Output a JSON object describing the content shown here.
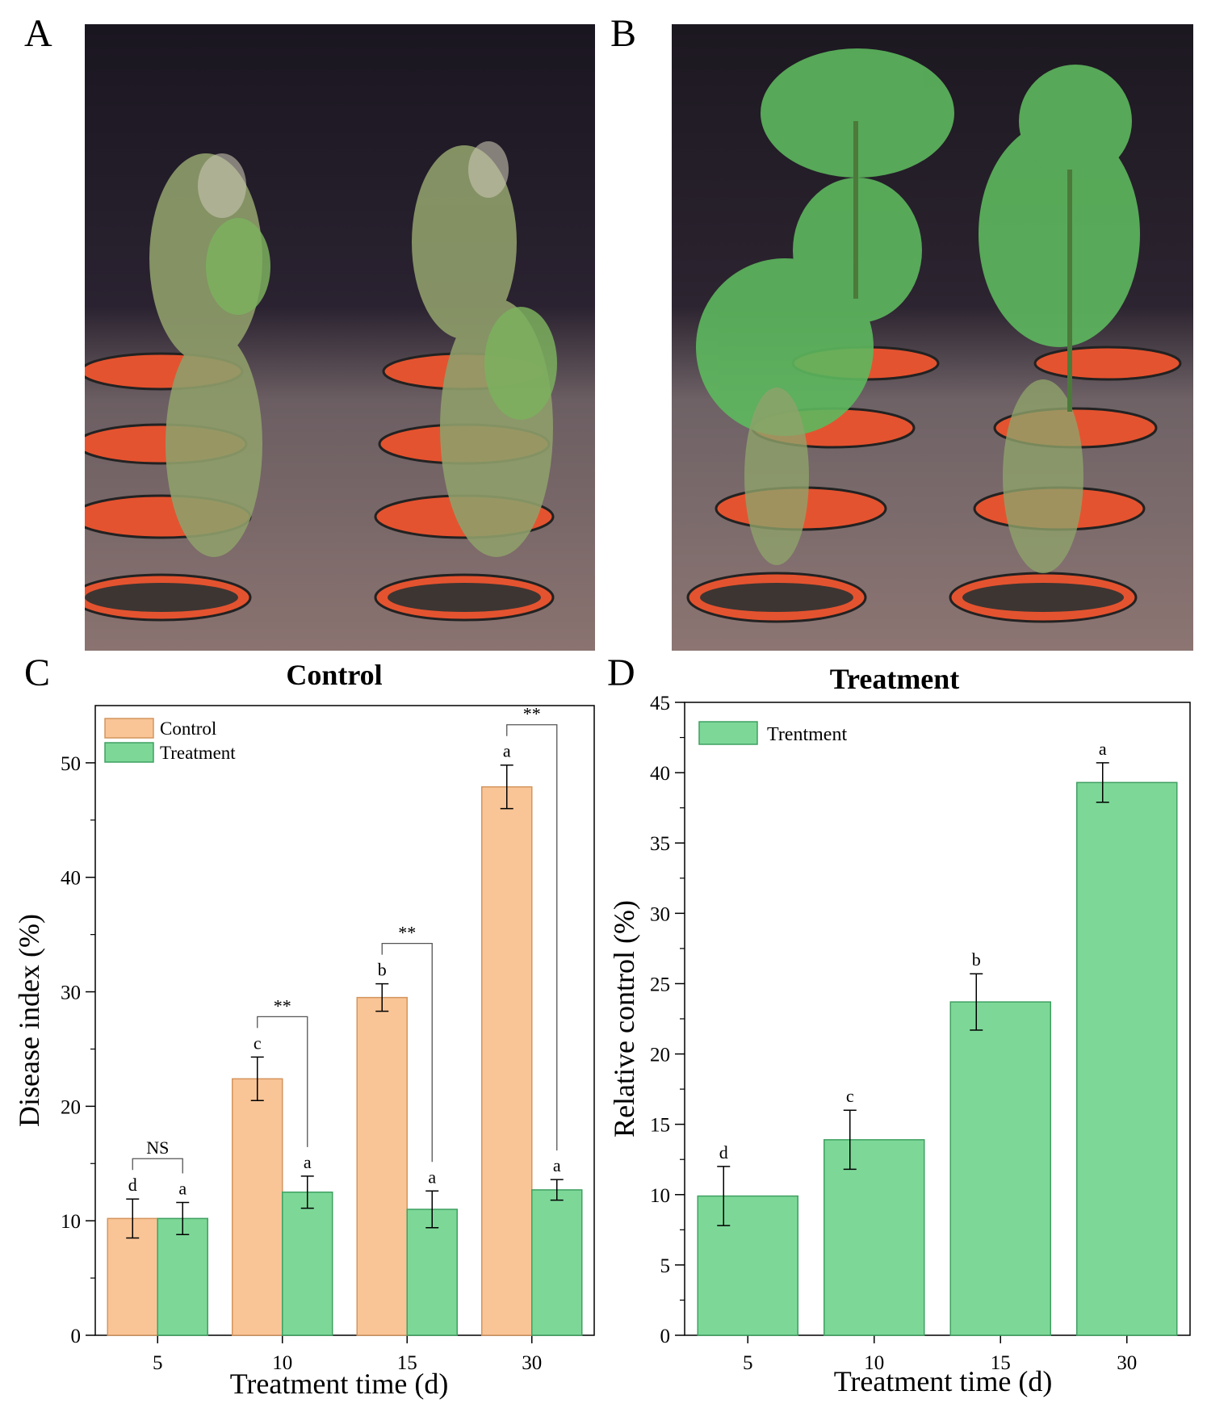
{
  "panels": {
    "a": {
      "letter": "A"
    },
    "b": {
      "letter": "B"
    },
    "c": {
      "letter": "C"
    },
    "d": {
      "letter": "D"
    }
  },
  "colors": {
    "control": "#f9c597",
    "control_edge": "#d4955e",
    "treatment": "#7dd898",
    "treatment_edge": "#3fa061"
  },
  "chart_data": [
    {
      "type": "bar",
      "title": "Control",
      "xlabel": "Treatment time (d)",
      "ylabel": "Disease index (%)",
      "categories": [
        "5",
        "10",
        "15",
        "30"
      ],
      "ylim": [
        0,
        55
      ],
      "yticks": [
        "0",
        "10",
        "20",
        "30",
        "40",
        "50"
      ],
      "legend_position": "top-left",
      "series": [
        {
          "name": "Control",
          "values": [
            10.2,
            22.4,
            29.5,
            47.9
          ],
          "errors": [
            1.7,
            1.9,
            1.2,
            1.9
          ],
          "letters": [
            "d",
            "c",
            "b",
            "a"
          ]
        },
        {
          "name": "Treatment",
          "values": [
            10.2,
            12.5,
            11.0,
            12.7
          ],
          "errors": [
            1.4,
            1.4,
            1.6,
            0.9
          ],
          "letters": [
            "a",
            "a",
            "a",
            "a"
          ]
        }
      ],
      "significance": [
        "NS",
        "**",
        "**",
        "**"
      ]
    },
    {
      "type": "bar",
      "title": "Treatment",
      "xlabel": "Treatment time (d)",
      "ylabel": "Relative control (%)",
      "categories": [
        "5",
        "10",
        "15",
        "30"
      ],
      "ylim": [
        0,
        45
      ],
      "yticks": [
        "0",
        "5",
        "10",
        "15",
        "20",
        "25",
        "30",
        "35",
        "40",
        "45"
      ],
      "legend_position": "top-left",
      "series": [
        {
          "name": "Trentment",
          "values": [
            9.9,
            13.9,
            23.7,
            39.3
          ],
          "errors": [
            2.1,
            2.1,
            2.0,
            1.4
          ],
          "letters": [
            "d",
            "c",
            "b",
            "a"
          ]
        }
      ]
    }
  ]
}
